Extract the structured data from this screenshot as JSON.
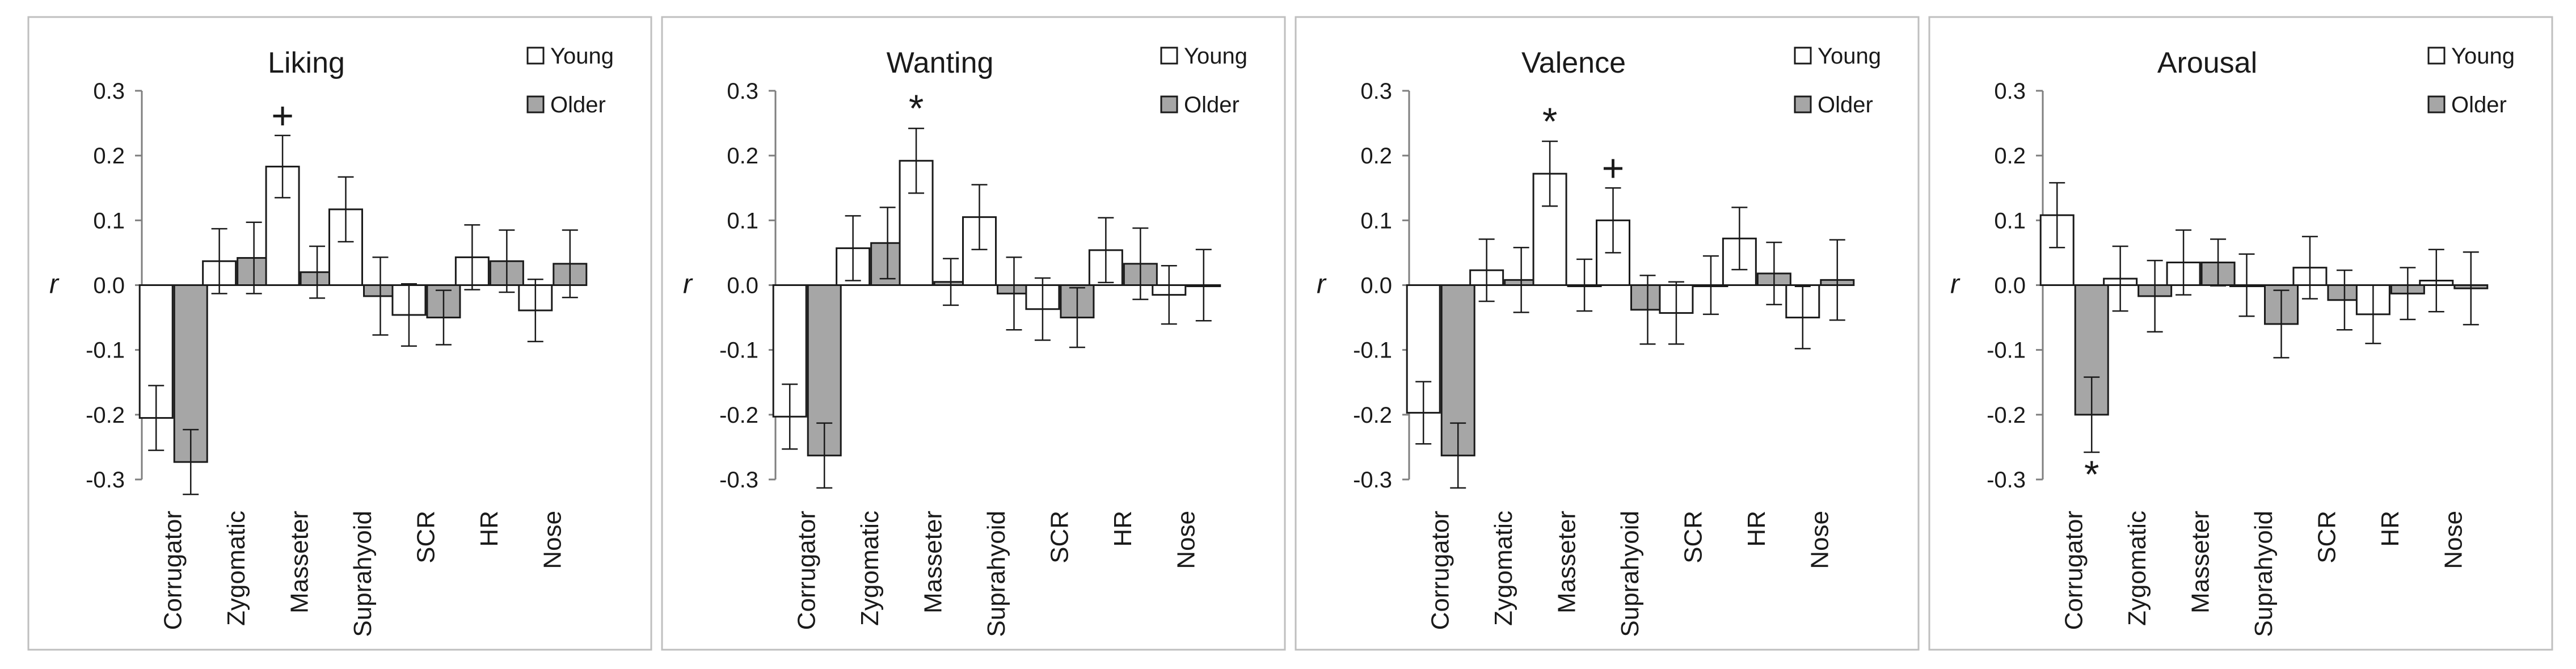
{
  "chart_data": [
    {
      "type": "bar",
      "title": "Liking",
      "ylabel": "r",
      "ylim": [
        -0.3,
        0.3
      ],
      "yticks": [
        "0.3",
        "0.2",
        "0.1",
        "0.0",
        "-0.1",
        "-0.2",
        "-0.3"
      ],
      "grid": false,
      "legend_position": "top-right",
      "categories": [
        "Corrugator",
        "Zygomatic",
        "Masseter",
        "Suprahyoid",
        "SCR",
        "HR",
        "Nose"
      ],
      "series": [
        {
          "name": "Young",
          "color": "#ffffff",
          "values": [
            -0.205,
            0.037,
            0.183,
            0.117,
            -0.046,
            0.043,
            -0.039
          ],
          "errors": [
            0.05,
            0.05,
            0.048,
            0.05,
            0.048,
            0.05,
            0.048
          ]
        },
        {
          "name": "Older",
          "color": "#a6a6a6",
          "values": [
            -0.273,
            0.042,
            0.02,
            -0.017,
            -0.05,
            0.037,
            0.033
          ],
          "errors": [
            0.05,
            0.055,
            0.04,
            0.06,
            0.042,
            0.048,
            0.052
          ]
        }
      ],
      "annotations": [
        {
          "text": "+",
          "category": "Masseter",
          "series": "Young"
        }
      ]
    },
    {
      "type": "bar",
      "title": "Wanting",
      "ylabel": "r",
      "ylim": [
        -0.3,
        0.3
      ],
      "yticks": [
        "0.3",
        "0.2",
        "0.1",
        "0.0",
        "-0.1",
        "-0.2",
        "-0.3"
      ],
      "grid": false,
      "legend_position": "top-right",
      "categories": [
        "Corrugator",
        "Zygomatic",
        "Masseter",
        "Suprahyoid",
        "SCR",
        "HR",
        "Nose"
      ],
      "series": [
        {
          "name": "Young",
          "color": "#ffffff",
          "values": [
            -0.203,
            0.057,
            0.192,
            0.105,
            -0.037,
            0.054,
            -0.015
          ],
          "errors": [
            0.05,
            0.05,
            0.05,
            0.05,
            0.048,
            0.05,
            0.045
          ]
        },
        {
          "name": "Older",
          "color": "#a6a6a6",
          "values": [
            -0.263,
            0.065,
            0.005,
            -0.013,
            -0.05,
            0.033,
            0.0
          ],
          "errors": [
            0.05,
            0.055,
            0.036,
            0.056,
            0.046,
            0.055,
            0.055
          ]
        }
      ],
      "annotations": [
        {
          "text": "*",
          "category": "Masseter",
          "series": "Young"
        }
      ]
    },
    {
      "type": "bar",
      "title": "Valence",
      "ylabel": "r",
      "ylim": [
        -0.3,
        0.3
      ],
      "yticks": [
        "0.3",
        "0.2",
        "0.1",
        "0.0",
        "-0.1",
        "-0.2",
        "-0.3"
      ],
      "grid": false,
      "legend_position": "top-right",
      "categories": [
        "Corrugator",
        "Zygomatic",
        "Masseter",
        "Suprahyoid",
        "SCR",
        "HR",
        "Nose"
      ],
      "series": [
        {
          "name": "Young",
          "color": "#ffffff",
          "values": [
            -0.197,
            0.023,
            0.172,
            0.1,
            -0.043,
            0.072,
            -0.05
          ],
          "errors": [
            0.048,
            0.048,
            0.05,
            0.05,
            0.048,
            0.048,
            0.048
          ]
        },
        {
          "name": "Older",
          "color": "#a6a6a6",
          "values": [
            -0.263,
            0.008,
            0.0,
            -0.038,
            0.0,
            0.018,
            0.008
          ],
          "errors": [
            0.05,
            0.05,
            0.04,
            0.053,
            0.045,
            0.048,
            0.062
          ]
        }
      ],
      "annotations": [
        {
          "text": "*",
          "category": "Masseter",
          "series": "Young"
        },
        {
          "text": "+",
          "category": "Suprahyoid",
          "series": "Young"
        }
      ]
    },
    {
      "type": "bar",
      "title": "Arousal",
      "ylabel": "r",
      "ylim": [
        -0.3,
        0.3
      ],
      "yticks": [
        "0.3",
        "0.2",
        "0.1",
        "0.0",
        "-0.1",
        "-0.2",
        "-0.3"
      ],
      "grid": false,
      "legend_position": "top-right",
      "categories": [
        "Corrugator",
        "Zygomatic",
        "Masseter",
        "Suprahyoid",
        "SCR",
        "HR",
        "Nose"
      ],
      "series": [
        {
          "name": "Young",
          "color": "#ffffff",
          "values": [
            0.108,
            0.01,
            0.035,
            0.0,
            0.027,
            -0.045,
            0.007
          ],
          "errors": [
            0.05,
            0.05,
            0.05,
            0.048,
            0.048,
            0.045,
            0.048
          ]
        },
        {
          "name": "Older",
          "color": "#a6a6a6",
          "values": [
            -0.2,
            -0.017,
            0.035,
            -0.06,
            -0.023,
            -0.013,
            -0.005
          ],
          "errors": [
            0.058,
            0.055,
            0.036,
            0.052,
            0.046,
            0.04,
            0.056
          ]
        }
      ],
      "annotations": [
        {
          "text": "*",
          "category": "Corrugator",
          "series": "Older"
        }
      ]
    }
  ]
}
